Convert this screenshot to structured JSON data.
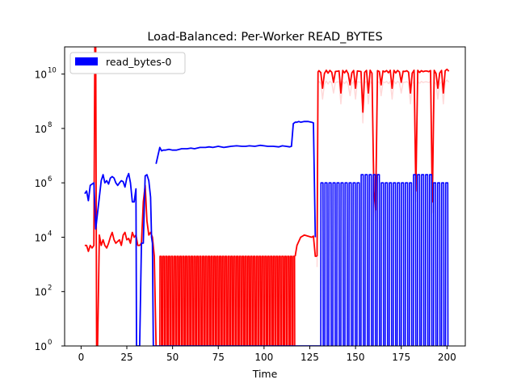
{
  "chart_data": {
    "type": "line",
    "title": "Load-Balanced: Per-Worker READ_BYTES",
    "xlabel": "Time",
    "ylabel": "",
    "xlim": [
      -9,
      210
    ],
    "ylim_log10": [
      0,
      11
    ],
    "yscale": "log",
    "x_ticks": [
      0,
      25,
      50,
      75,
      100,
      125,
      150,
      175,
      200
    ],
    "x_tick_labels": [
      "0",
      "25",
      "50",
      "75",
      "100",
      "125",
      "150",
      "175",
      "200"
    ],
    "y_ticks_log10": [
      0,
      2,
      4,
      6,
      8,
      10
    ],
    "y_tick_labels": [
      "10",
      "10",
      "10",
      "10",
      "10",
      "10"
    ],
    "y_tick_exponents": [
      "0",
      "2",
      "4",
      "6",
      "8",
      "10"
    ],
    "legend": {
      "placement": "top-left",
      "entries": [
        {
          "label": "read_bytes-0",
          "color": "#0000ff"
        }
      ]
    },
    "series": [
      {
        "name": "read_bytes-0",
        "color": "#0000ff",
        "x": [
          2,
          3,
          4,
          5,
          6,
          7,
          8,
          9,
          10,
          11,
          12,
          13,
          14,
          15,
          16,
          17,
          18,
          19,
          20,
          21,
          22,
          23,
          24,
          25,
          26,
          27,
          28,
          29,
          30,
          30.3,
          31,
          32,
          33,
          34,
          35,
          36,
          37,
          38,
          38.5,
          39,
          39.5,
          40,
          41,
          41.5,
          42,
          43,
          45,
          48,
          50,
          55,
          60,
          65,
          70,
          75,
          80,
          85,
          90,
          95,
          100,
          105,
          110,
          113,
          115,
          116,
          117,
          118,
          120,
          122,
          124,
          126,
          127,
          127.5,
          128,
          128.5,
          129,
          129.5,
          130,
          130.5,
          131
        ],
        "y": [
          400000.0,
          500000.0,
          220000.0,
          800000.0,
          900000.0,
          1000000.0,
          20000.0,
          80000.0,
          300000.0,
          1200000.0,
          2000000.0,
          1000000.0,
          1200000.0,
          900000.0,
          1500000.0,
          1700000.0,
          1500000.0,
          1000000.0,
          800000.0,
          1000000.0,
          1200000.0,
          1100000.0,
          700000.0,
          1500000.0,
          2200000.0,
          1000000.0,
          200000.0,
          200000.0,
          600000.0,
          1,
          1,
          1,
          6000.0,
          6000.0,
          1800000.0,
          2000000.0,
          1200000.0,
          300000.0,
          10000.0,
          6000.0,
          1,
          1,
          1,
          1,
          1,
          1,
          1,
          1,
          1,
          1,
          1,
          1,
          1,
          1,
          1,
          1,
          1,
          1,
          1,
          1,
          1,
          1,
          1,
          1,
          1,
          1,
          1,
          1,
          1,
          1,
          1,
          1,
          1,
          1,
          1,
          1,
          1,
          1,
          1
        ],
        "overlay_bursts": [
          {
            "x": [
              41,
              42,
              43,
              44,
              45,
              46,
              48,
              50,
              52,
              55,
              58,
              60,
              62,
              65,
              68,
              70,
              72,
              75,
              78,
              80,
              82,
              85,
              88,
              90,
              92,
              95,
              98,
              100,
              102,
              105,
              108,
              110,
              112,
              114,
              115,
              116,
              117,
              118,
              119,
              120,
              122,
              124,
              126,
              127,
              128
            ],
            "y": [
              5000000.0,
              10000000.0,
              20000000.0,
              15000000.0,
              16000000.0,
              16000000.0,
              17000000.0,
              16000000.0,
              16000000.0,
              18000000.0,
              18000000.0,
              19000000.0,
              18000000.0,
              20000000.0,
              20000000.0,
              21000000.0,
              20000000.0,
              22000000.0,
              20000000.0,
              21000000.0,
              22000000.0,
              23000000.0,
              22000000.0,
              22000000.0,
              23000000.0,
              22000000.0,
              24000000.0,
              23000000.0,
              22000000.0,
              22000000.0,
              21000000.0,
              23000000.0,
              22000000.0,
              21000000.0,
              22000000.0,
              150000000.0,
              170000000.0,
              170000000.0,
              180000000.0,
              170000000.0,
              180000000.0,
              180000000.0,
              170000000.0,
              160000000.0,
              10000.0
            ]
          }
        ],
        "tail_pulses": {
          "x_start": 131,
          "x_end": 201,
          "period": 2.2,
          "high": 1000000.0,
          "high_bump_x": [
            155,
            160,
            184,
            185,
            190
          ],
          "high_bump_y": 2000000.0,
          "low": 1
        }
      },
      {
        "name": "",
        "color": "#ff0000",
        "x": [
          2,
          3,
          4,
          5,
          6,
          7,
          7.5,
          8,
          8.5,
          9,
          10,
          11,
          12,
          13,
          14,
          15,
          16,
          17,
          18,
          19,
          20,
          21,
          22,
          23,
          24,
          25,
          26,
          27,
          28,
          29,
          30,
          31,
          32,
          33,
          34,
          35,
          36,
          37,
          38,
          39,
          40,
          41
        ],
        "y": [
          5000.0,
          5000.0,
          3000.0,
          5000.0,
          4000.0,
          5000.0,
          100000000000.0,
          100000000000.0,
          1,
          1,
          12000.0,
          5000.0,
          8000.0,
          5000.0,
          4000.0,
          6000.0,
          10000.0,
          15000.0,
          8000.0,
          6000.0,
          7000.0,
          8000.0,
          5000.0,
          12000.0,
          15000.0,
          8000.0,
          9000.0,
          6000.0,
          15000.0,
          10000.0,
          12000.0,
          5000.0,
          5000.0,
          6000.0,
          200000.0,
          800000.0,
          40000.0,
          12000.0,
          15000.0,
          10000.0,
          2000.0,
          1
        ],
        "middle_pulses": {
          "x_start": 43,
          "x_end": 116,
          "period": 1.55,
          "high": 2000.0,
          "low": 1
        },
        "plateau": {
          "x": [
            117,
            118,
            120,
            122,
            124,
            126,
            127,
            128,
            129
          ],
          "y": [
            2000.0,
            5000.0,
            10000.0,
            12000.0,
            11000.0,
            10000.0,
            11000.0,
            2000.0,
            2000.0
          ]
        },
        "tail": {
          "x_start": 129,
          "x_end": 201,
          "level": 12000000000.0,
          "dips": [
            {
              "x": 132,
              "y": 3000000000.0
            },
            {
              "x": 138,
              "y": 5000000000.0
            },
            {
              "x": 142,
              "y": 2000000000.0
            },
            {
              "x": 147,
              "y": 4000000000.0
            },
            {
              "x": 150,
              "y": 3000000000.0
            },
            {
              "x": 154,
              "y": 400000000.0
            },
            {
              "x": 157,
              "y": 2000000000.0
            },
            {
              "x": 160,
              "y": 500000.0
            },
            {
              "x": 161,
              "y": 100000.0
            },
            {
              "x": 164,
              "y": 4000000000.0
            },
            {
              "x": 170,
              "y": 3000000000.0
            },
            {
              "x": 175,
              "y": 5000000000.0
            },
            {
              "x": 180,
              "y": 2000000000.0
            },
            {
              "x": 183,
              "y": 500000.0
            },
            {
              "x": 192,
              "y": 200000.0
            },
            {
              "x": 195,
              "y": 3000000000.0
            },
            {
              "x": 198,
              "y": 2000000000.0
            },
            {
              "x": 200,
              "y": 15000000000.0
            }
          ]
        }
      }
    ]
  }
}
